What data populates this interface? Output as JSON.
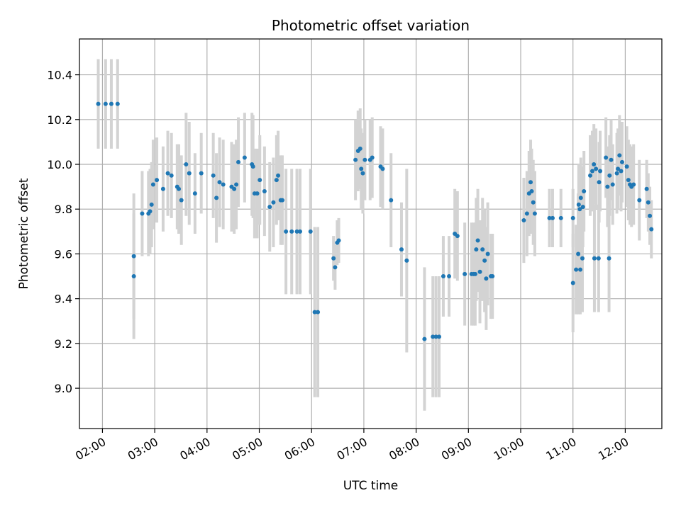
{
  "chart_data": {
    "type": "scatter",
    "title": "Photometric offset variation",
    "xlabel": "UTC time",
    "ylabel": "Photometric offset",
    "xlim": [
      1.56,
      12.7
    ],
    "ylim": [
      8.82,
      10.56
    ],
    "grid": true,
    "x_unit": "hours (UTC)",
    "x_ticks": [
      {
        "value": 2,
        "label": "02:00"
      },
      {
        "value": 3,
        "label": "03:00"
      },
      {
        "value": 4,
        "label": "04:00"
      },
      {
        "value": 5,
        "label": "05:00"
      },
      {
        "value": 6,
        "label": "06:00"
      },
      {
        "value": 7,
        "label": "07:00"
      },
      {
        "value": 8,
        "label": "08:00"
      },
      {
        "value": 9,
        "label": "09:00"
      },
      {
        "value": 10,
        "label": "10:00"
      },
      {
        "value": 11,
        "label": "11:00"
      },
      {
        "value": 12,
        "label": "12:00"
      }
    ],
    "y_ticks": [
      {
        "value": 9.0,
        "label": "9.0"
      },
      {
        "value": 9.2,
        "label": "9.2"
      },
      {
        "value": 9.4,
        "label": "9.4"
      },
      {
        "value": 9.6,
        "label": "9.6"
      },
      {
        "value": 9.8,
        "label": "9.8"
      },
      {
        "value": 10.0,
        "label": "10.0"
      },
      {
        "value": 10.2,
        "label": "10.2"
      },
      {
        "value": 10.4,
        "label": "10.4"
      }
    ],
    "colors": {
      "point": "#1f77b4",
      "errorbar": "#d3d3d3",
      "grid": "#b0b0b0"
    },
    "series": [
      {
        "name": "offset",
        "points": [
          [
            1.92,
            10.27,
            0.2
          ],
          [
            2.06,
            10.27,
            0.2
          ],
          [
            2.17,
            10.27,
            0.2
          ],
          [
            2.29,
            10.27,
            0.2
          ],
          [
            2.6,
            9.59,
            0.28
          ],
          [
            2.6,
            9.5,
            0.28
          ],
          [
            2.76,
            9.78,
            0.19
          ],
          [
            2.88,
            9.78,
            0.19
          ],
          [
            2.91,
            9.79,
            0.19
          ],
          [
            2.94,
            9.82,
            0.19
          ],
          [
            2.97,
            9.91,
            0.2
          ],
          [
            3.04,
            9.93,
            0.19
          ],
          [
            3.16,
            9.89,
            0.19
          ],
          [
            3.25,
            9.96,
            0.19
          ],
          [
            3.32,
            9.95,
            0.19
          ],
          [
            3.43,
            9.9,
            0.19
          ],
          [
            3.46,
            9.89,
            0.2
          ],
          [
            3.51,
            9.84,
            0.2
          ],
          [
            3.6,
            10.0,
            0.23
          ],
          [
            3.66,
            9.96,
            0.23
          ],
          [
            3.77,
            9.87,
            0.18
          ],
          [
            3.89,
            9.96,
            0.18
          ],
          [
            4.12,
            9.95,
            0.19
          ],
          [
            4.18,
            9.85,
            0.2
          ],
          [
            4.24,
            9.92,
            0.2
          ],
          [
            4.31,
            9.91,
            0.2
          ],
          [
            4.47,
            9.9,
            0.2
          ],
          [
            4.52,
            9.89,
            0.2
          ],
          [
            4.56,
            9.91,
            0.2
          ],
          [
            4.6,
            10.01,
            0.2
          ],
          [
            4.72,
            10.03,
            0.2
          ],
          [
            4.86,
            10.0,
            0.23
          ],
          [
            4.88,
            9.99,
            0.23
          ],
          [
            4.91,
            9.87,
            0.2
          ],
          [
            4.96,
            9.87,
            0.2
          ],
          [
            5.01,
            9.93,
            0.2
          ],
          [
            5.1,
            9.88,
            0.2
          ],
          [
            5.2,
            9.81,
            0.2
          ],
          [
            5.27,
            9.83,
            0.2
          ],
          [
            5.33,
            9.93,
            0.2
          ],
          [
            5.36,
            9.95,
            0.2
          ],
          [
            5.41,
            9.84,
            0.2
          ],
          [
            5.44,
            9.84,
            0.2
          ],
          [
            5.51,
            9.7,
            0.28
          ],
          [
            5.62,
            9.7,
            0.28
          ],
          [
            5.72,
            9.7,
            0.28
          ],
          [
            5.78,
            9.7,
            0.28
          ],
          [
            5.98,
            9.7,
            0.28
          ],
          [
            6.06,
            9.34,
            0.38
          ],
          [
            6.12,
            9.34,
            0.38
          ],
          [
            6.42,
            9.58,
            0.1
          ],
          [
            6.45,
            9.54,
            0.1
          ],
          [
            6.49,
            9.65,
            0.1
          ],
          [
            6.52,
            9.66,
            0.1
          ],
          [
            6.84,
            10.02,
            0.18
          ],
          [
            6.89,
            10.06,
            0.18
          ],
          [
            6.93,
            10.07,
            0.18
          ],
          [
            6.95,
            9.98,
            0.18
          ],
          [
            6.98,
            9.96,
            0.18
          ],
          [
            7.02,
            10.02,
            0.18
          ],
          [
            7.12,
            10.02,
            0.18
          ],
          [
            7.16,
            10.03,
            0.18
          ],
          [
            7.32,
            9.99,
            0.18
          ],
          [
            7.36,
            9.98,
            0.18
          ],
          [
            7.52,
            9.84,
            0.21
          ],
          [
            7.72,
            9.62,
            0.21
          ],
          [
            7.82,
            9.57,
            0.41
          ],
          [
            8.16,
            9.22,
            0.32
          ],
          [
            8.32,
            9.23,
            0.27
          ],
          [
            8.38,
            9.23,
            0.27
          ],
          [
            8.44,
            9.23,
            0.27
          ],
          [
            8.52,
            9.5,
            0.18
          ],
          [
            8.63,
            9.5,
            0.18
          ],
          [
            8.74,
            9.69,
            0.2
          ],
          [
            8.79,
            9.68,
            0.2
          ],
          [
            8.93,
            9.51,
            0.23
          ],
          [
            9.06,
            9.51,
            0.23
          ],
          [
            9.1,
            9.51,
            0.23
          ],
          [
            9.13,
            9.51,
            0.23
          ],
          [
            9.15,
            9.62,
            0.23
          ],
          [
            9.18,
            9.66,
            0.23
          ],
          [
            9.22,
            9.52,
            0.23
          ],
          [
            9.27,
            9.62,
            0.23
          ],
          [
            9.31,
            9.57,
            0.23
          ],
          [
            9.34,
            9.49,
            0.23
          ],
          [
            9.37,
            9.6,
            0.23
          ],
          [
            9.43,
            9.5,
            0.19
          ],
          [
            9.46,
            9.5,
            0.19
          ],
          [
            10.06,
            9.75,
            0.19
          ],
          [
            10.12,
            9.78,
            0.19
          ],
          [
            10.16,
            9.87,
            0.19
          ],
          [
            10.19,
            9.92,
            0.19
          ],
          [
            10.21,
            9.88,
            0.19
          ],
          [
            10.24,
            9.83,
            0.19
          ],
          [
            10.27,
            9.78,
            0.19
          ],
          [
            10.55,
            9.76,
            0.13
          ],
          [
            10.61,
            9.76,
            0.13
          ],
          [
            10.77,
            9.76,
            0.13
          ],
          [
            11.0,
            9.76,
            0.13
          ],
          [
            11.11,
            9.82,
            0.18
          ],
          [
            11.13,
            9.8,
            0.18
          ],
          [
            11.15,
            9.85,
            0.18
          ],
          [
            11.19,
            9.81,
            0.18
          ],
          [
            11.21,
            9.88,
            0.18
          ],
          [
            11.33,
            9.95,
            0.18
          ],
          [
            11.37,
            9.97,
            0.18
          ],
          [
            11.4,
            10.0,
            0.18
          ],
          [
            11.44,
            9.98,
            0.18
          ],
          [
            11.5,
            9.92,
            0.18
          ],
          [
            11.52,
            9.97,
            0.18
          ],
          [
            11.63,
            10.03,
            0.18
          ],
          [
            11.66,
            9.9,
            0.18
          ],
          [
            11.7,
            9.95,
            0.18
          ],
          [
            11.73,
            10.02,
            0.18
          ],
          [
            11.76,
            9.91,
            0.18
          ],
          [
            11.84,
            9.96,
            0.18
          ],
          [
            11.86,
            9.98,
            0.18
          ],
          [
            11.89,
            10.04,
            0.18
          ],
          [
            11.92,
            9.97,
            0.18
          ],
          [
            11.94,
            10.01,
            0.18
          ],
          [
            12.03,
            9.99,
            0.18
          ],
          [
            12.06,
            9.93,
            0.18
          ],
          [
            12.09,
            9.91,
            0.18
          ],
          [
            12.12,
            9.9,
            0.18
          ],
          [
            12.16,
            9.91,
            0.18
          ],
          [
            12.27,
            9.84,
            0.18
          ],
          [
            12.41,
            9.89,
            0.13
          ],
          [
            12.44,
            9.83,
            0.13
          ],
          [
            12.47,
            9.77,
            0.13
          ],
          [
            12.5,
            9.71,
            0.13
          ],
          [
            11.0,
            9.47,
            0.22
          ],
          [
            11.06,
            9.53,
            0.2
          ],
          [
            11.1,
            9.6,
            0.27
          ],
          [
            11.14,
            9.53,
            0.2
          ],
          [
            11.18,
            9.58,
            0.24
          ],
          [
            11.41,
            9.58,
            0.24
          ],
          [
            11.49,
            9.58,
            0.24
          ],
          [
            11.69,
            9.58,
            0.24
          ]
        ]
      }
    ]
  }
}
